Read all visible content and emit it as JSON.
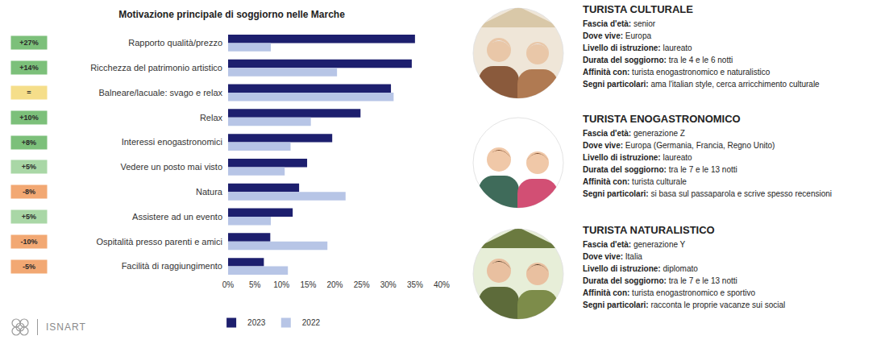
{
  "chart_data": {
    "type": "bar",
    "orientation": "horizontal",
    "title": "Motivazione principale di soggiorno nelle Marche",
    "categories": [
      "Rapporto qualità/prezzo",
      "Ricchezza del patrimonio artistico",
      "Balneare/lacuale: svago e relax",
      "Relax",
      "Interessi enogastronomici",
      "Vedere un posto mai visto",
      "Natura",
      "Assistere ad un evento",
      "Ospitalità presso parenti e amici",
      "Facilità di raggiungimento"
    ],
    "series": [
      {
        "name": "2023",
        "color": "#1d1f6e",
        "values": [
          35,
          34.4,
          30.5,
          24.8,
          19.5,
          14.8,
          13.3,
          12.1,
          7.9,
          6.7
        ]
      },
      {
        "name": "2022",
        "color": "#b7c5e6",
        "values": [
          8,
          20.4,
          31,
          15.5,
          11.7,
          10.6,
          22,
          8,
          18.6,
          11.2
        ]
      }
    ],
    "xlim": [
      0,
      40
    ],
    "xticks": [
      {
        "value": 0,
        "label": "0%"
      },
      {
        "value": 5,
        "label": "5%"
      },
      {
        "value": 10,
        "label": "10%"
      },
      {
        "value": 15,
        "label": "15%"
      },
      {
        "value": 20,
        "label": "20%"
      },
      {
        "value": 25,
        "label": "25%"
      },
      {
        "value": 30,
        "label": "30%"
      },
      {
        "value": 35,
        "label": "35%"
      },
      {
        "value": 40,
        "label": "40%"
      }
    ],
    "grid": false,
    "legend": "bottom",
    "annotations": [
      {
        "text": "+27%",
        "color": "#7cc07a"
      },
      {
        "text": "+14%",
        "color": "#7cc07a"
      },
      {
        "text": "=",
        "color": "#f5de8a"
      },
      {
        "text": "+10%",
        "color": "#7cc07a"
      },
      {
        "text": "+8%",
        "color": "#7cc07a"
      },
      {
        "text": "+5%",
        "color": "#a9d7a6"
      },
      {
        "text": "-8%",
        "color": "#f2a873"
      },
      {
        "text": "+5%",
        "color": "#a9d7a6"
      },
      {
        "text": "-10%",
        "color": "#f2a873"
      },
      {
        "text": "-5%",
        "color": "#f2a873"
      }
    ]
  },
  "profiles": [
    {
      "title": "TURISTA CULTURALE",
      "fields": [
        {
          "label": "Fascia d'età:",
          "value": "senior"
        },
        {
          "label": "Dove vive:",
          "value": "Europa"
        },
        {
          "label": "Livello di istruzione:",
          "value": "laureato"
        },
        {
          "label": "Durata del soggiorno:",
          "value": "tra le 4 e le 6 notti"
        },
        {
          "label": "Affinità con:",
          "value": "turista enogastronomico e naturalistico"
        },
        {
          "label": "Segni particolari:",
          "value": "ama l'italian style, cerca arricchimento culturale"
        }
      ]
    },
    {
      "title": "TURISTA ENOGASTRONOMICO",
      "fields": [
        {
          "label": "Fascia d'età:",
          "value": "generazione Z"
        },
        {
          "label": "Dove vive:",
          "value": "Europa (Germania, Francia, Regno Unito)"
        },
        {
          "label": "Livello di istruzione:",
          "value": "laureato"
        },
        {
          "label": "Durata del soggiorno:",
          "value": "tra le 7 e le 13 notti"
        },
        {
          "label": "Affinità con:",
          "value": "turista culturale"
        },
        {
          "label": "Segni particolari:",
          "value": "si basa sul passaparola e scrive spesso recensioni"
        }
      ]
    },
    {
      "title": "TURISTA NATURALISTICO",
      "fields": [
        {
          "label": "Fascia d'età:",
          "value": "generazione Y"
        },
        {
          "label": "Dove vive:",
          "value": "Italia"
        },
        {
          "label": "Livello di istruzione:",
          "value": "diplomato"
        },
        {
          "label": "Durata del soggiorno:",
          "value": "tra le 7 e le 13 notti"
        },
        {
          "label": "Affinità con:",
          "value": "turista enogastronomico e sportivo"
        },
        {
          "label": "Segni particolari:",
          "value": "racconta le proprie vacanze sui social"
        }
      ]
    }
  ],
  "logo": {
    "text": "ISNART"
  }
}
